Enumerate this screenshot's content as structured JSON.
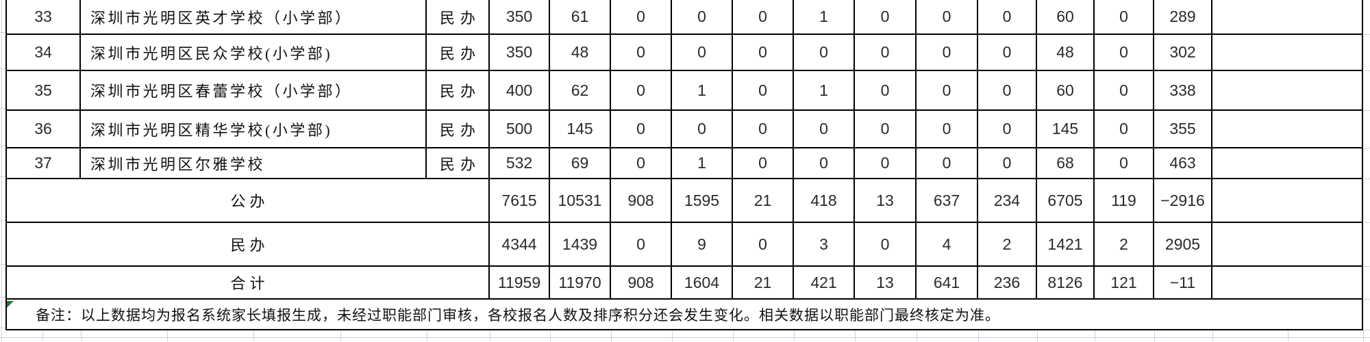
{
  "table": {
    "school_rows": [
      {
        "no": "33",
        "name": "深圳市光明区英才学校（小学部）",
        "type": "民办",
        "values": [
          "350",
          "61",
          "0",
          "0",
          "0",
          "1",
          "0",
          "0",
          "0",
          "60",
          "0",
          "289"
        ]
      },
      {
        "no": "34",
        "name": "深圳市光明区民众学校(小学部)",
        "type": "民办",
        "values": [
          "350",
          "48",
          "0",
          "0",
          "0",
          "0",
          "0",
          "0",
          "0",
          "48",
          "0",
          "302"
        ]
      },
      {
        "no": "35",
        "name": "深圳市光明区春蕾学校（小学部）",
        "type": "民办",
        "values": [
          "400",
          "62",
          "0",
          "1",
          "0",
          "1",
          "0",
          "0",
          "0",
          "60",
          "0",
          "338"
        ]
      },
      {
        "no": "36",
        "name": "深圳市光明区精华学校(小学部)",
        "type": "民办",
        "values": [
          "500",
          "145",
          "0",
          "0",
          "0",
          "0",
          "0",
          "0",
          "0",
          "145",
          "0",
          "355"
        ]
      },
      {
        "no": "37",
        "name": "深圳市光明区尔雅学校",
        "type": "民办",
        "values": [
          "532",
          "69",
          "0",
          "1",
          "0",
          "0",
          "0",
          "0",
          "0",
          "68",
          "0",
          "463"
        ]
      }
    ],
    "summary_rows": [
      {
        "label": "公办",
        "values": [
          "7615",
          "10531",
          "908",
          "1595",
          "21",
          "418",
          "13",
          "637",
          "234",
          "6705",
          "119",
          "−2916"
        ]
      },
      {
        "label": "民办",
        "values": [
          "4344",
          "1439",
          "0",
          "9",
          "0",
          "3",
          "0",
          "4",
          "2",
          "1421",
          "2",
          "2905"
        ]
      },
      {
        "label": "合计",
        "values": [
          "11959",
          "11970",
          "908",
          "1604",
          "21",
          "421",
          "13",
          "641",
          "236",
          "8126",
          "121",
          "−11"
        ]
      }
    ],
    "remark": "备注：以上数据均为报名系统家长填报生成，未经过职能部门审核，各校报名人数及排序积分还会发生变化。相关数据以职能部门最终核定为准。"
  },
  "colors": {
    "border": "#000000",
    "sheet_gridline": "#ccd3e3",
    "comment_indicator_green": "#1e7e34",
    "background": "#ffffff",
    "text": "#1c1c1c"
  }
}
